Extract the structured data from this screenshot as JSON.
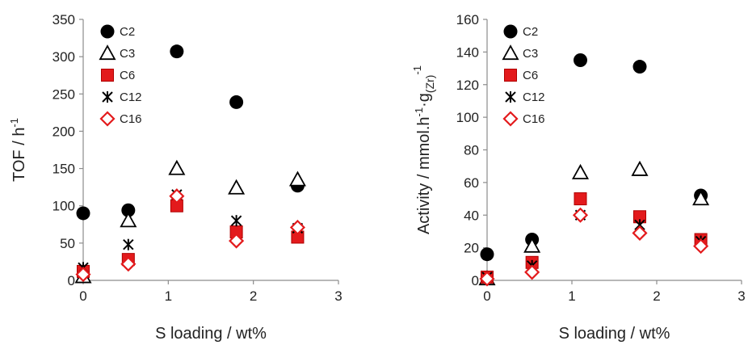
{
  "chart_data": [
    {
      "type": "scatter",
      "xlabel": "S loading / wt%",
      "ylabel": "TOF / h",
      "ylabel_sup": "-1",
      "xlim": [
        0,
        3
      ],
      "ylim": [
        0,
        350
      ],
      "xticks": [
        "0",
        "1",
        "2",
        "3"
      ],
      "yticks": [
        "0",
        "50",
        "100",
        "150",
        "200",
        "250",
        "300",
        "350"
      ],
      "grid": false,
      "legend_position": "top-right",
      "series": [
        {
          "name": "C2",
          "marker": "filled-circle",
          "color": "#000000",
          "x": [
            0,
            0.53,
            1.1,
            1.8,
            2.52
          ],
          "y": [
            90,
            94,
            307,
            239,
            127
          ]
        },
        {
          "name": "C3",
          "marker": "open-triangle",
          "color": "#000000",
          "x": [
            0,
            0.53,
            1.1,
            1.8,
            2.52
          ],
          "y": [
            5,
            80,
            150,
            124,
            135
          ]
        },
        {
          "name": "C6",
          "marker": "filled-square",
          "color": "#e31a1c",
          "x": [
            0,
            0.53,
            1.1,
            1.8,
            2.52
          ],
          "y": [
            12,
            28,
            100,
            65,
            58
          ]
        },
        {
          "name": "C12",
          "marker": "asterisk",
          "color": "#000000",
          "x": [
            0,
            0.53,
            1.1,
            1.8,
            2.52
          ],
          "y": [
            17,
            48,
            115,
            80,
            70
          ]
        },
        {
          "name": "C16",
          "marker": "open-diamond",
          "color": "#e31a1c",
          "x": [
            0,
            0.53,
            1.1,
            1.8,
            2.52
          ],
          "y": [
            8,
            22,
            113,
            53,
            71
          ]
        }
      ]
    },
    {
      "type": "scatter",
      "xlabel": "S loading / wt%",
      "ylabel": "Activity / mmol.h",
      "ylabel_sup": "-1",
      "ylabel_mid": "·g",
      "ylabel_sub": "(Zr)",
      "ylabel_sup2": "-1",
      "xlim": [
        0,
        3
      ],
      "ylim": [
        0,
        160
      ],
      "xticks": [
        "0",
        "1",
        "2",
        "3"
      ],
      "yticks": [
        "0",
        "20",
        "40",
        "60",
        "80",
        "100",
        "120",
        "140",
        "160"
      ],
      "grid": false,
      "legend_position": "top-right",
      "series": [
        {
          "name": "C2",
          "marker": "filled-circle",
          "color": "#000000",
          "x": [
            0,
            0.53,
            1.1,
            1.8,
            2.52
          ],
          "y": [
            16,
            25,
            135,
            131,
            52
          ]
        },
        {
          "name": "C3",
          "marker": "open-triangle",
          "color": "#000000",
          "x": [
            0,
            0.53,
            1.1,
            1.8,
            2.52
          ],
          "y": [
            1,
            21,
            66,
            68,
            50
          ]
        },
        {
          "name": "C6",
          "marker": "filled-square",
          "color": "#e31a1c",
          "x": [
            0,
            0.53,
            1.1,
            1.8,
            2.52
          ],
          "y": [
            2,
            11,
            50,
            39,
            25
          ]
        },
        {
          "name": "C12",
          "marker": "asterisk",
          "color": "#000000",
          "x": [
            0,
            0.53,
            1.1,
            1.8,
            2.52
          ],
          "y": [
            2,
            9,
            40,
            34,
            24
          ]
        },
        {
          "name": "C16",
          "marker": "open-diamond",
          "color": "#e31a1c",
          "x": [
            0,
            0.53,
            1.1,
            1.8,
            2.52
          ],
          "y": [
            1,
            5,
            40,
            29,
            21
          ]
        }
      ]
    }
  ]
}
